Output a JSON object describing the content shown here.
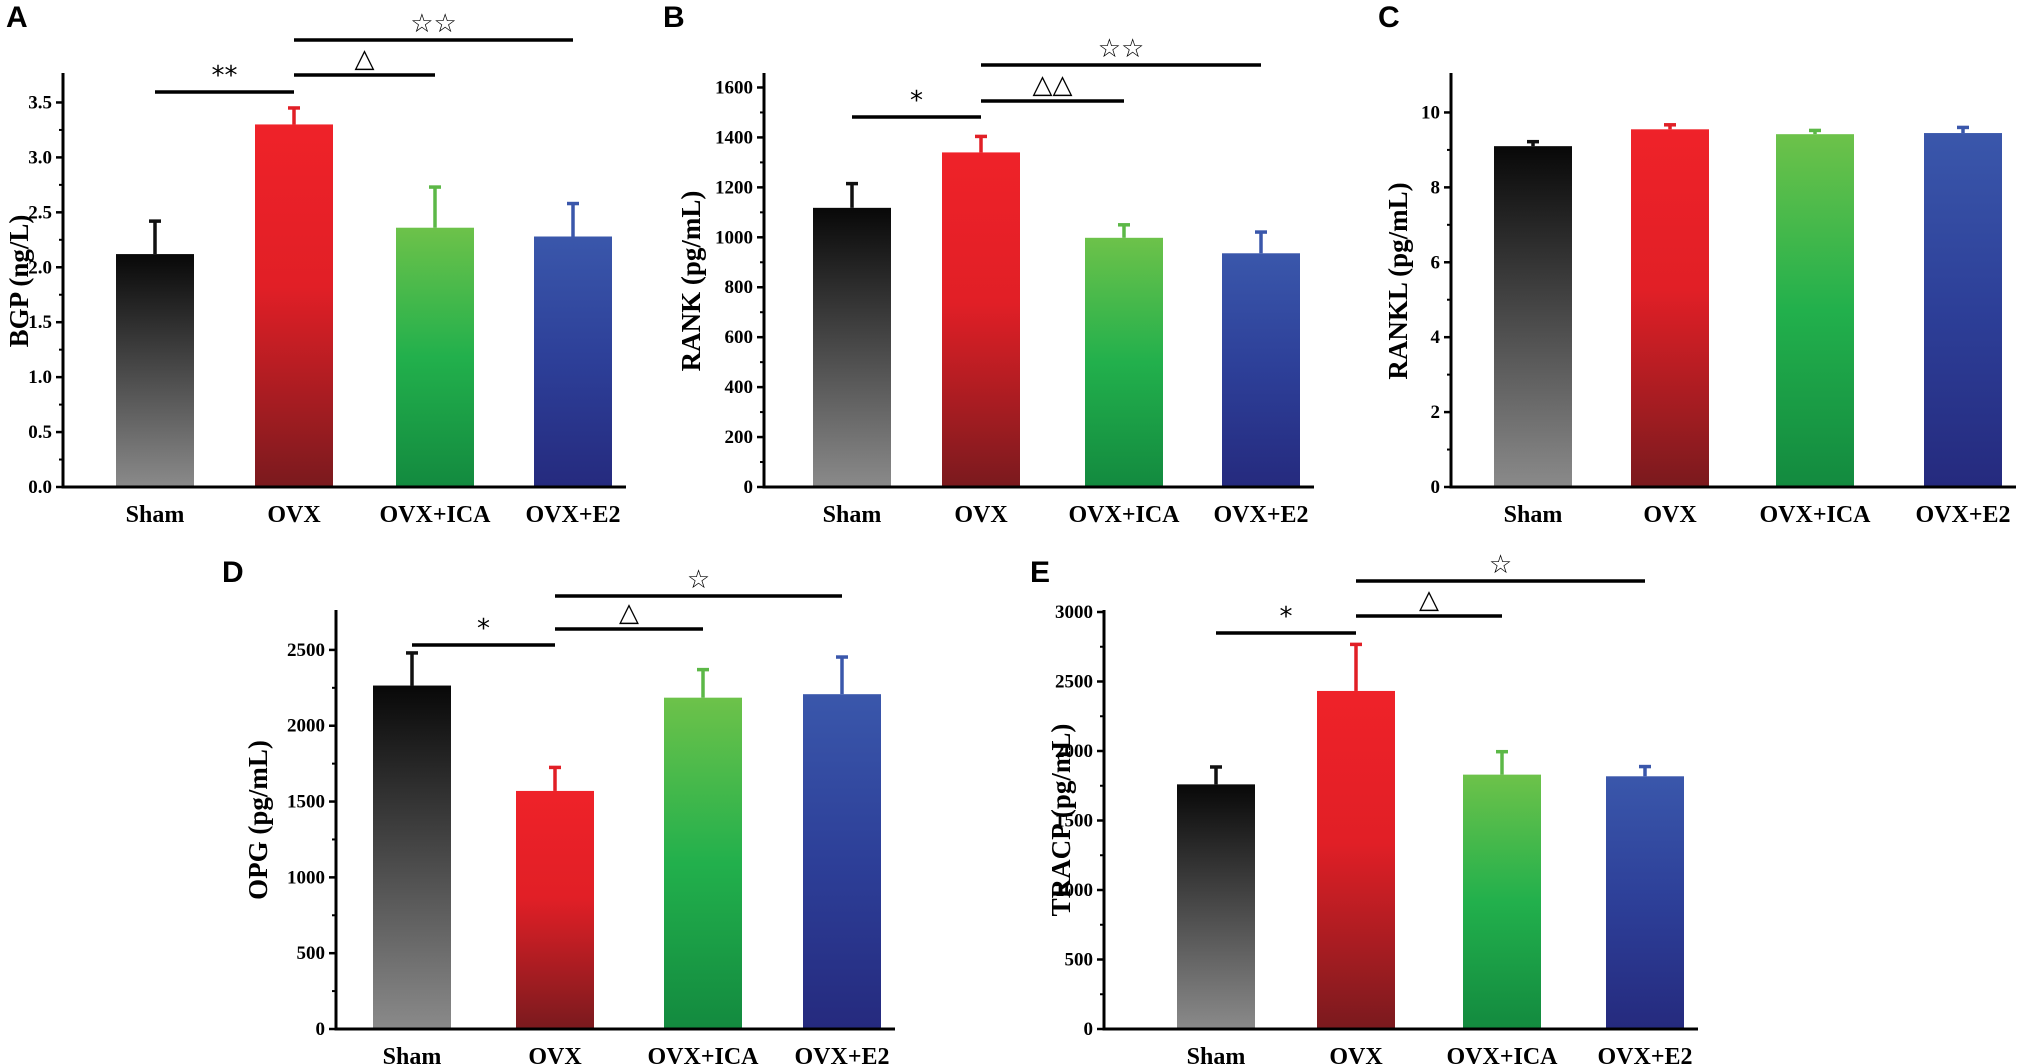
{
  "figure": {
    "colors": {
      "sham": [
        "#080808",
        "#8a8a8a"
      ],
      "ovx": [
        "#ef2229",
        "#7a1a1e"
      ],
      "ica": [
        "#6dc24a",
        "#138a3f"
      ],
      "e2": [
        "#3a57ab",
        "#252a7e"
      ]
    }
  },
  "chart_data": [
    {
      "panel": "A",
      "type": "bar",
      "ylabel": "BGP (ng/L)",
      "categories": [
        "Sham",
        "OVX",
        "OVX+ICA",
        "OVX+E2"
      ],
      "values": [
        2.12,
        3.3,
        2.36,
        2.28
      ],
      "errors": [
        0.3,
        0.15,
        0.37,
        0.3
      ],
      "ylim": [
        0,
        3.75
      ],
      "yticks": [
        "0.0",
        "0.5",
        "1.0",
        "1.5",
        "2.0",
        "2.5",
        "3.0",
        "3.5"
      ],
      "yticks_v": [
        0,
        0.5,
        1.0,
        1.5,
        2.0,
        2.5,
        3.0,
        3.5
      ],
      "significance": [
        {
          "from": 0,
          "to": 1,
          "label": "**"
        },
        {
          "from": 1,
          "to": 2,
          "label": "△"
        },
        {
          "from": 1,
          "to": 3,
          "label": "☆☆"
        }
      ]
    },
    {
      "panel": "B",
      "type": "bar",
      "ylabel": "RANK (pg/mL)",
      "categories": [
        "Sham",
        "OVX",
        "OVX+ICA",
        "OVX+E2"
      ],
      "values": [
        1118,
        1340,
        998,
        936
      ],
      "errors": [
        97,
        64,
        52,
        85
      ],
      "ylim": [
        0,
        1650
      ],
      "yticks": [
        "0",
        "200",
        "400",
        "600",
        "800",
        "1000",
        "1200",
        "1400",
        "1600"
      ],
      "yticks_v": [
        0,
        200,
        400,
        600,
        800,
        1000,
        1200,
        1400,
        1600
      ],
      "significance": [
        {
          "from": 0,
          "to": 1,
          "label": "*"
        },
        {
          "from": 1,
          "to": 2,
          "label": "△△"
        },
        {
          "from": 1,
          "to": 3,
          "label": "☆☆"
        }
      ]
    },
    {
      "panel": "C",
      "type": "bar",
      "ylabel": "RANKL (pg/mL)",
      "categories": [
        "Sham",
        "OVX",
        "OVX+ICA",
        "OVX+E2"
      ],
      "values": [
        9.1,
        9.55,
        9.42,
        9.45
      ],
      "errors": [
        0.12,
        0.12,
        0.1,
        0.15
      ],
      "ylim": [
        0,
        11
      ],
      "yticks": [
        "0",
        "2",
        "4",
        "6",
        "8",
        "10"
      ],
      "yticks_v": [
        0,
        2,
        4,
        6,
        8,
        10
      ],
      "significance": []
    },
    {
      "panel": "D",
      "type": "bar",
      "ylabel": "OPG (pg/mL)",
      "categories": [
        "Sham",
        "OVX",
        "OVX+ICA",
        "OVX+E2"
      ],
      "values": [
        2265,
        1570,
        2185,
        2208
      ],
      "errors": [
        215,
        155,
        185,
        245
      ],
      "ylim": [
        0,
        2750
      ],
      "yticks": [
        "0",
        "500",
        "1000",
        "1500",
        "2000",
        "2500"
      ],
      "yticks_v": [
        0,
        500,
        1000,
        1500,
        2000,
        2500
      ],
      "significance": [
        {
          "from": 0,
          "to": 1,
          "label": "*"
        },
        {
          "from": 1,
          "to": 2,
          "label": "△"
        },
        {
          "from": 1,
          "to": 3,
          "label": "☆"
        }
      ]
    },
    {
      "panel": "E",
      "type": "bar",
      "ylabel": "TRACP (pg/mL)",
      "categories": [
        "Sham",
        "OVX",
        "OVX+ICA",
        "OVX+E2"
      ],
      "values": [
        1760,
        2432,
        1830,
        1818
      ],
      "errors": [
        125,
        335,
        165,
        70
      ],
      "ylim": [
        0,
        3000
      ],
      "yticks": [
        "0",
        "500",
        "1000",
        "1500",
        "2000",
        "2500",
        "3000"
      ],
      "yticks_v": [
        0,
        500,
        1000,
        1500,
        2000,
        2500,
        3000
      ],
      "significance": [
        {
          "from": 0,
          "to": 1,
          "label": "*"
        },
        {
          "from": 1,
          "to": 2,
          "label": "△"
        },
        {
          "from": 1,
          "to": 3,
          "label": "☆"
        }
      ]
    }
  ]
}
